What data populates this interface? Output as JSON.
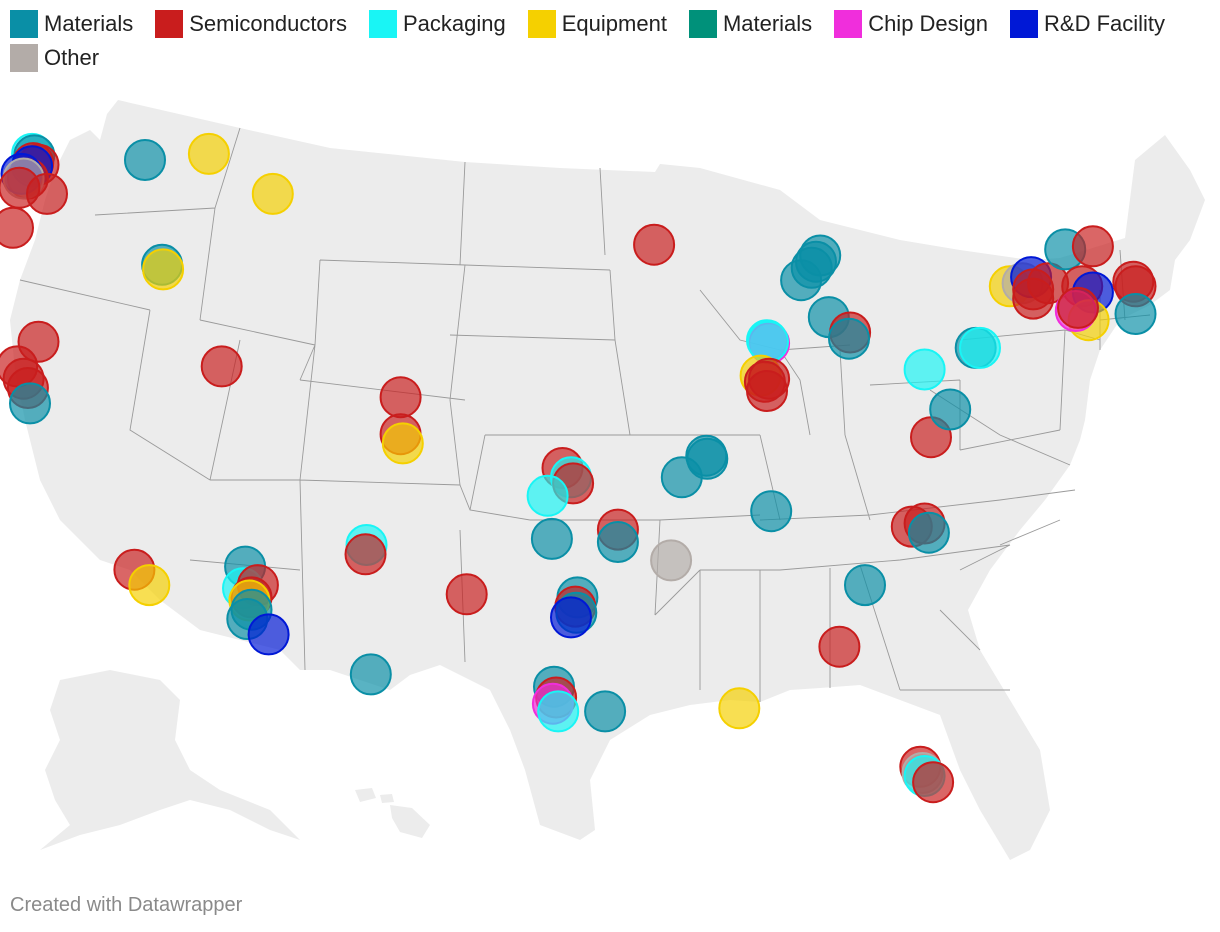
{
  "legend": [
    {
      "label": "Materials",
      "color": "#0a8fa6"
    },
    {
      "label": "Semiconductors",
      "color": "#c91d1d"
    },
    {
      "label": "Packaging",
      "color": "#19f5f5"
    },
    {
      "label": "Equipment",
      "color": "#f5d000"
    },
    {
      "label": "Materials",
      "color": "#00917a"
    },
    {
      "label": "Chip Design",
      "color": "#f02edc"
    },
    {
      "label": "R&D Facility",
      "color": "#0018d6"
    },
    {
      "label": "Other",
      "color": "#b3aca8"
    }
  ],
  "credit": "Created with Datawrapper",
  "markers": [
    {
      "category": "Packaging",
      "lon": -122.3,
      "lat": 47.9
    },
    {
      "category": "Materials",
      "lon": -122.2,
      "lat": 47.85
    },
    {
      "category": "Semiconductors",
      "lon": -122.25,
      "lat": 47.6
    },
    {
      "category": "Semiconductors",
      "lon": -122.0,
      "lat": 47.55
    },
    {
      "category": "R&D Facility",
      "lon": -122.3,
      "lat": 47.5
    },
    {
      "category": "Semiconductors",
      "lon": -122.5,
      "lat": 47.1
    },
    {
      "category": "R&D Facility",
      "lon": -122.8,
      "lat": 47.25
    },
    {
      "category": "Other",
      "lon": -122.7,
      "lat": 47.1
    },
    {
      "category": "Semiconductors",
      "lon": -122.9,
      "lat": 46.8
    },
    {
      "category": "Semiconductors",
      "lon": -121.6,
      "lat": 46.6
    },
    {
      "category": "Semiconductors",
      "lon": -123.2,
      "lat": 45.5
    },
    {
      "category": "Materials",
      "lon": -117.0,
      "lat": 47.7
    },
    {
      "category": "Equipment",
      "lon": -114.0,
      "lat": 47.9
    },
    {
      "category": "Equipment",
      "lon": -111.0,
      "lat": 46.6
    },
    {
      "category": "Materials",
      "lon": -116.2,
      "lat": 44.3
    },
    {
      "category": "Equipment",
      "lon": -116.15,
      "lat": 44.15
    },
    {
      "category": "Semiconductors",
      "lon": -122.0,
      "lat": 41.8
    },
    {
      "category": "Semiconductors",
      "lon": -123.0,
      "lat": 41.0
    },
    {
      "category": "Semiconductors",
      "lon": -122.7,
      "lat": 40.6
    },
    {
      "category": "Semiconductors",
      "lon": -122.5,
      "lat": 40.3
    },
    {
      "category": "Materials",
      "lon": -122.4,
      "lat": 39.8
    },
    {
      "category": "Semiconductors",
      "lon": -113.4,
      "lat": 41.0
    },
    {
      "category": "Semiconductors",
      "lon": -117.5,
      "lat": 34.4
    },
    {
      "category": "Equipment",
      "lon": -116.8,
      "lat": 33.9
    },
    {
      "category": "Materials",
      "lon": -112.3,
      "lat": 34.5
    },
    {
      "category": "Packaging",
      "lon": -112.4,
      "lat": 33.8
    },
    {
      "category": "Semiconductors",
      "lon": -111.7,
      "lat": 33.9
    },
    {
      "category": "Semiconductors",
      "lon": -112.0,
      "lat": 33.5
    },
    {
      "category": "Equipment",
      "lon": -112.1,
      "lat": 33.4
    },
    {
      "category": "Materials",
      "lon": -112.0,
      "lat": 33.1
    },
    {
      "category": "Materials",
      "lon": -112.2,
      "lat": 32.8
    },
    {
      "category": "R&D Facility",
      "lon": -111.2,
      "lat": 32.3
    },
    {
      "category": "Semiconductors",
      "lon": -105.0,
      "lat": 40.0
    },
    {
      "category": "Semiconductors",
      "lon": -105.0,
      "lat": 38.8
    },
    {
      "category": "Equipment",
      "lon": -104.9,
      "lat": 38.5
    },
    {
      "category": "Packaging",
      "lon": -106.6,
      "lat": 35.2
    },
    {
      "category": "Semiconductors",
      "lon": -106.65,
      "lat": 34.9
    },
    {
      "category": "Materials",
      "lon": -106.4,
      "lat": 31.0
    },
    {
      "category": "Semiconductors",
      "lon": -101.9,
      "lat": 33.6
    },
    {
      "category": "Semiconductors",
      "lon": -97.4,
      "lat": 37.7
    },
    {
      "category": "Packaging",
      "lon": -97.0,
      "lat": 37.4
    },
    {
      "category": "Semiconductors",
      "lon": -96.9,
      "lat": 37.2
    },
    {
      "category": "Packaging",
      "lon": -98.1,
      "lat": 36.8
    },
    {
      "category": "Materials",
      "lon": -97.9,
      "lat": 35.4
    },
    {
      "category": "Materials",
      "lon": -96.7,
      "lat": 33.5
    },
    {
      "category": "Semiconductors",
      "lon": -96.8,
      "lat": 33.2
    },
    {
      "category": "Materials",
      "lon": -96.75,
      "lat": 33.0
    },
    {
      "category": "R&D Facility",
      "lon": -97.0,
      "lat": 32.85
    },
    {
      "category": "Materials",
      "lon": -97.8,
      "lat": 30.6
    },
    {
      "category": "Semiconductors",
      "lon": -97.7,
      "lat": 30.25
    },
    {
      "category": "Chip Design",
      "lon": -97.85,
      "lat": 30.05
    },
    {
      "category": "Packaging",
      "lon": -97.6,
      "lat": 29.8
    },
    {
      "category": "Materials",
      "lon": -95.4,
      "lat": 29.8
    },
    {
      "category": "Semiconductors",
      "lon": -94.8,
      "lat": 35.7
    },
    {
      "category": "Materials",
      "lon": -94.8,
      "lat": 35.3
    },
    {
      "category": "Other",
      "lon": -92.3,
      "lat": 34.7
    },
    {
      "category": "Semiconductors",
      "lon": -93.1,
      "lat": 44.95
    },
    {
      "category": "Materials",
      "lon": -91.8,
      "lat": 37.4
    },
    {
      "category": "Materials",
      "lon": -90.6,
      "lat": 38.0
    },
    {
      "category": "Materials",
      "lon": -90.65,
      "lat": 38.1
    },
    {
      "category": "Equipment",
      "lon": -89.1,
      "lat": 29.9
    },
    {
      "category": "Packaging",
      "lon": -87.8,
      "lat": 41.85
    },
    {
      "category": "Chip Design",
      "lon": -87.7,
      "lat": 41.75
    },
    {
      "category": "Packaging",
      "lon": -87.75,
      "lat": 41.8
    },
    {
      "category": "Equipment",
      "lon": -88.1,
      "lat": 40.7
    },
    {
      "category": "Semiconductors",
      "lon": -87.7,
      "lat": 40.6
    },
    {
      "category": "Semiconductors",
      "lon": -87.9,
      "lat": 40.5
    },
    {
      "category": "Semiconductors",
      "lon": -87.8,
      "lat": 40.2
    },
    {
      "category": "Materials",
      "lon": -87.6,
      "lat": 36.3
    },
    {
      "category": "Materials",
      "lon": -86.2,
      "lat": 43.8
    },
    {
      "category": "Materials",
      "lon": -85.7,
      "lat": 44.2
    },
    {
      "category": "Materials",
      "lon": -85.5,
      "lat": 44.4
    },
    {
      "category": "Materials",
      "lon": -85.3,
      "lat": 44.6
    },
    {
      "category": "Materials",
      "lon": -84.9,
      "lat": 42.6
    },
    {
      "category": "Semiconductors",
      "lon": -83.9,
      "lat": 42.1
    },
    {
      "category": "Materials",
      "lon": -83.95,
      "lat": 41.9
    },
    {
      "category": "Packaging",
      "lon": -80.4,
      "lat": 40.9
    },
    {
      "category": "Materials",
      "lon": -83.2,
      "lat": 33.9
    },
    {
      "category": "Semiconductors",
      "lon": -84.4,
      "lat": 31.9
    },
    {
      "category": "Semiconductors",
      "lon": -81.0,
      "lat": 35.8
    },
    {
      "category": "Semiconductors",
      "lon": -80.4,
      "lat": 35.9
    },
    {
      "category": "Materials",
      "lon": -80.2,
      "lat": 35.6
    },
    {
      "category": "Semiconductors",
      "lon": -80.1,
      "lat": 38.7
    },
    {
      "category": "Materials",
      "lon": -78.0,
      "lat": 41.6
    },
    {
      "category": "Packaging",
      "lon": -77.8,
      "lat": 41.6
    },
    {
      "category": "Materials",
      "lon": -79.2,
      "lat": 39.6
    },
    {
      "category": "Equipment",
      "lon": -76.4,
      "lat": 43.6
    },
    {
      "category": "Other",
      "lon": -75.8,
      "lat": 43.7
    },
    {
      "category": "R&D Facility",
      "lon": -75.4,
      "lat": 43.9
    },
    {
      "category": "Semiconductors",
      "lon": -75.3,
      "lat": 43.5
    },
    {
      "category": "Semiconductors",
      "lon": -75.3,
      "lat": 43.2
    },
    {
      "category": "Semiconductors",
      "lon": -74.6,
      "lat": 43.7
    },
    {
      "category": "Materials",
      "lon": -73.8,
      "lat": 44.8
    },
    {
      "category": "Semiconductors",
      "lon": -72.5,
      "lat": 44.9
    },
    {
      "category": "Semiconductors",
      "lon": -73.0,
      "lat": 43.6
    },
    {
      "category": "R&D Facility",
      "lon": -72.5,
      "lat": 43.4
    },
    {
      "category": "Equipment",
      "lon": -72.7,
      "lat": 42.5
    },
    {
      "category": "Chip Design",
      "lon": -73.3,
      "lat": 42.8
    },
    {
      "category": "Semiconductors",
      "lon": -73.2,
      "lat": 42.9
    },
    {
      "category": "Semiconductors",
      "lon": -70.6,
      "lat": 43.75
    },
    {
      "category": "Semiconductors",
      "lon": -70.5,
      "lat": 43.6
    },
    {
      "category": "Materials",
      "lon": -70.5,
      "lat": 42.7
    },
    {
      "category": "Semiconductors",
      "lon": -80.6,
      "lat": 28.0
    },
    {
      "category": "Other",
      "lon": -80.5,
      "lat": 27.8
    },
    {
      "category": "Packaging",
      "lon": -80.4,
      "lat": 27.7
    },
    {
      "category": "Semiconductors",
      "lon": -80.0,
      "lat": 27.5
    }
  ]
}
